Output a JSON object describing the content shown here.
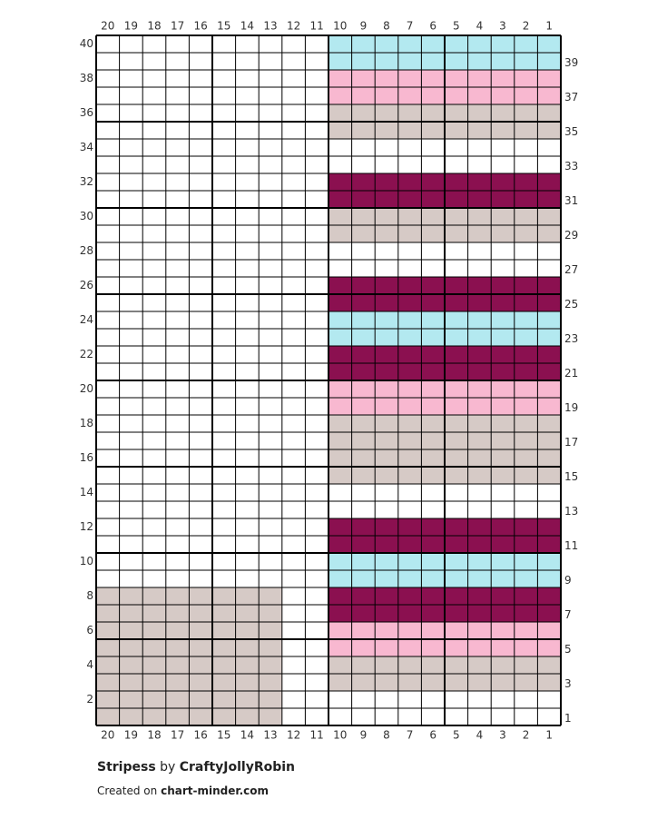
{
  "grid": {
    "columns": [
      20,
      19,
      18,
      17,
      16,
      15,
      14,
      13,
      12,
      11,
      10,
      9,
      8,
      7,
      6,
      5,
      4,
      3,
      2,
      1
    ],
    "row_labels": [
      1,
      2,
      3,
      4,
      5,
      6,
      7,
      8,
      9,
      10,
      11,
      12,
      13,
      14,
      15,
      16,
      17,
      18,
      19,
      20,
      21,
      22,
      23,
      24,
      25,
      26,
      27,
      28,
      29,
      30,
      31,
      32,
      33,
      34,
      35,
      36,
      37,
      38,
      39,
      40
    ],
    "colors": {
      "w": "#ffffff",
      "t": "#d6cac6",
      "p": "#f8b8d0",
      "m": "#8b1050",
      "b": "#b3e9f0"
    },
    "rows": [
      "ttttttttwwwwwwwwwwww",
      "ttttttttwwwwwwwwwwww",
      "ttttttttwwtttttttttt",
      "ttttttttwwtttttttttt",
      "ttttttttwwpppppppppp",
      "ttttttttwwpppppppppp",
      "ttttttttwwmmmmmmmmmm",
      "ttttttttwwmmmmmmmmmm",
      "wwwwwwwwwwbbbbbbbbbb",
      "wwwwwwwwwwbbbbbbbbbb",
      "wwwwwwwwwwmmmmmmmmmm",
      "wwwwwwwwwwmmmmmmmmmm",
      "wwwwwwwwwwwwwwwwwwww",
      "wwwwwwwwwwwwwwwwwwww",
      "wwwwwwwwwwtttttttttt",
      "wwwwwwwwwwtttttttttt",
      "wwwwwwwwwwtttttttttt",
      "wwwwwwwwwwtttttttttt",
      "wwwwwwwwwwpppppppppp",
      "wwwwwwwwwwpppppppppp",
      "wwwwwwwwwwmmmmmmmmmm",
      "wwwwwwwwwwmmmmmmmmmm",
      "wwwwwwwwwwbbbbbbbbbb",
      "wwwwwwwwwwbbbbbbbbbb",
      "wwwwwwwwwwmmmmmmmmmm",
      "wwwwwwwwwwmmmmmmmmmm",
      "wwwwwwwwwwwwwwwwwwww",
      "wwwwwwwwwwwwwwwwwwww",
      "wwwwwwwwwwtttttttttt",
      "wwwwwwwwwwtttttttttt",
      "wwwwwwwwwwmmmmmmmmmm",
      "wwwwwwwwwwmmmmmmmmmm",
      "wwwwwwwwwwwwwwwwwwww",
      "wwwwwwwwwwwwwwwwwwww",
      "wwwwwwwwwwtttttttttt",
      "wwwwwwwwwwtttttttttt",
      "wwwwwwwwwwpppppppppp",
      "wwwwwwwwwwpppppppppp",
      "wwwwwwwwwwbbbbbbbbbb",
      "wwwwwwwwwwbbbbbbbbbb"
    ]
  },
  "footer": {
    "pattern": "Stripess",
    "by": "by",
    "author": "CraftyJollyRobin",
    "created_on": "Created on",
    "site": "chart-minder.com"
  }
}
